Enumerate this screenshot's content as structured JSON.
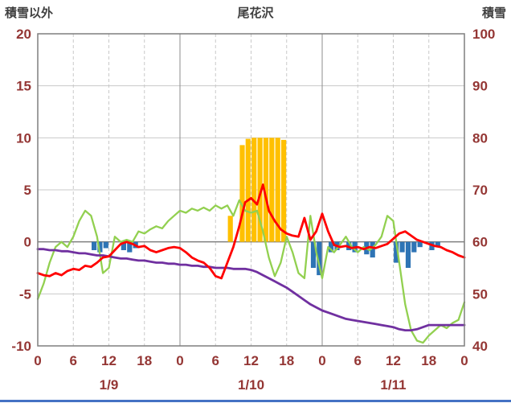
{
  "header": {
    "left_axis_title": "積雪以外",
    "title": "尾花沢",
    "right_axis_title": "積雪"
  },
  "colors": {
    "red_line": "#FF0000",
    "green_line": "#92D050",
    "purple_line": "#7030A0",
    "orange_bar": "#FFC000",
    "blue_bar": "#2E74B5",
    "axis_text": "#943634",
    "grid_light": "#C9C9C9",
    "grid_day": "#8C8C8C",
    "zero_line": "#7F7F7F",
    "border": "#7F7F7F",
    "title_text": "#3F3F3F",
    "bottom_strip": "#4472C4"
  },
  "chart_data": {
    "type": "combo",
    "title": "尾花沢",
    "x_axis": {
      "unit": "hour",
      "hours_total": 72,
      "tick_hours": [
        0,
        6,
        12,
        18,
        24,
        30,
        36,
        42,
        48,
        54,
        60,
        66,
        72
      ],
      "tick_labels": [
        "0",
        "6",
        "12",
        "18",
        "0",
        "6",
        "12",
        "18",
        "0",
        "6",
        "12",
        "18",
        "0"
      ],
      "day_labels": [
        "1/9",
        "1/10",
        "1/11"
      ],
      "day_label_hours": [
        12,
        36,
        60
      ]
    },
    "left_axis": {
      "title": "積雪以外",
      "min": -10,
      "max": 20,
      "step": 5,
      "ticks": [
        20,
        15,
        10,
        5,
        0,
        -5,
        -10
      ]
    },
    "right_axis": {
      "title": "積雪",
      "min": 40,
      "max": 100,
      "step": 10,
      "ticks": [
        100,
        90,
        80,
        70,
        60,
        50,
        40
      ]
    },
    "series": [
      {
        "name": "orange-bars",
        "type": "bar",
        "axis": "left",
        "color": "#FFC000",
        "values": [
          0,
          0,
          0,
          0,
          0,
          0,
          0,
          0,
          0,
          0,
          0,
          0,
          0,
          0,
          0,
          0,
          0,
          0,
          0,
          0,
          0,
          0,
          0,
          0,
          0,
          0,
          0,
          0,
          0,
          0,
          0,
          0,
          2.5,
          0,
          9.3,
          9.9,
          10,
          10,
          10,
          10,
          10,
          9.8,
          0,
          0,
          0,
          0,
          0,
          0,
          0,
          0,
          0,
          0,
          0,
          0,
          0,
          0,
          0,
          0,
          0,
          0,
          0,
          0,
          0,
          0,
          0,
          0,
          0,
          0,
          0,
          0,
          0,
          0,
          0
        ]
      },
      {
        "name": "blue-bars",
        "type": "bar",
        "axis": "left",
        "color": "#2E74B5",
        "values": [
          0,
          0,
          0,
          0,
          0,
          0,
          0,
          0,
          0,
          -0.8,
          -1.0,
          -0.6,
          0,
          0,
          -0.8,
          -1.0,
          -0.6,
          0,
          0,
          0,
          0,
          0,
          0,
          0,
          0,
          0,
          0,
          0,
          0,
          0,
          0,
          0,
          0,
          0,
          0,
          0,
          0,
          0,
          0,
          0,
          0,
          0,
          0,
          0,
          0,
          0,
          -2.5,
          -3.2,
          0,
          -1.0,
          -0.8,
          0,
          -0.8,
          -1.0,
          0,
          -1.2,
          -1.5,
          0,
          0,
          0,
          -2.0,
          -1.0,
          -2.5,
          -1.0,
          -0.5,
          0,
          -0.8,
          -0.5,
          0,
          0,
          0,
          0,
          0
        ]
      },
      {
        "name": "green-line",
        "type": "line",
        "axis": "left",
        "color": "#92D050",
        "values": [
          -5.5,
          -4.0,
          -2.0,
          -0.5,
          0.0,
          -0.5,
          0.5,
          2.0,
          3.0,
          2.5,
          0.5,
          -3.0,
          -2.5,
          0.5,
          0.0,
          0.2,
          0.0,
          1.0,
          0.8,
          1.2,
          1.5,
          1.3,
          2.0,
          2.5,
          3.0,
          2.8,
          3.2,
          3.0,
          3.3,
          3.0,
          3.5,
          3.2,
          3.5,
          2.5,
          4.0,
          3.0,
          2.8,
          3.0,
          1.0,
          -1.5,
          -3.3,
          -2.0,
          0.5,
          -1.0,
          -3.0,
          -3.5,
          2.5,
          -1.0,
          -3.5,
          -0.5,
          -1.0,
          -0.3,
          0.5,
          -0.5,
          -1.0,
          -0.5,
          -0.8,
          -0.3,
          0.5,
          2.5,
          2.0,
          -2.0,
          -6.0,
          -8.5,
          -9.5,
          -9.7,
          -9.0,
          -8.5,
          -8.0,
          -8.3,
          -7.8,
          -7.5,
          -5.8
        ]
      },
      {
        "name": "purple-line",
        "type": "line",
        "axis": "right",
        "color": "#7030A0",
        "values": [
          58.6,
          58.6,
          58.4,
          58.4,
          58.2,
          58.2,
          58.0,
          57.8,
          57.8,
          57.6,
          57.4,
          57.4,
          57.2,
          57.0,
          56.8,
          56.8,
          56.6,
          56.4,
          56.4,
          56.2,
          56.0,
          56.0,
          55.8,
          55.8,
          55.6,
          55.6,
          55.4,
          55.4,
          55.2,
          55.2,
          55.0,
          55.0,
          55.0,
          54.8,
          54.8,
          54.8,
          54.6,
          54.2,
          53.6,
          53.0,
          52.4,
          51.8,
          51.2,
          50.4,
          49.6,
          48.8,
          48.0,
          47.4,
          46.8,
          46.4,
          46.0,
          45.6,
          45.2,
          45.0,
          44.8,
          44.6,
          44.4,
          44.2,
          44.0,
          43.8,
          43.6,
          43.2,
          43.0,
          43.0,
          43.2,
          43.6,
          44.0,
          44.0,
          44.0,
          44.0,
          44.0,
          44.0,
          44.0
        ]
      },
      {
        "name": "red-line",
        "type": "line",
        "axis": "left",
        "color": "#FF0000",
        "values": [
          -3.0,
          -3.2,
          -3.3,
          -3.0,
          -3.2,
          -2.8,
          -2.6,
          -2.7,
          -2.3,
          -2.4,
          -2.0,
          -1.5,
          -1.4,
          -0.8,
          -0.2,
          0.0,
          -0.2,
          -0.5,
          -0.4,
          -0.8,
          -1.0,
          -0.8,
          -0.6,
          -0.5,
          -0.6,
          -1.0,
          -1.5,
          -1.8,
          -2.0,
          -2.5,
          -3.3,
          -3.5,
          -2.0,
          -0.5,
          1.5,
          3.8,
          4.2,
          3.6,
          5.5,
          3.0,
          2.0,
          1.2,
          0.8,
          0.6,
          0.5,
          2.3,
          0.2,
          1.0,
          2.7,
          1.0,
          -0.3,
          -0.5,
          -0.4,
          -0.6,
          -0.5,
          -0.7,
          -0.5,
          -0.6,
          -0.4,
          -0.2,
          0.3,
          0.8,
          1.0,
          0.6,
          0.2,
          0.0,
          -0.2,
          -0.4,
          -0.5,
          -0.8,
          -1.0,
          -1.3,
          -1.5
        ]
      }
    ]
  }
}
